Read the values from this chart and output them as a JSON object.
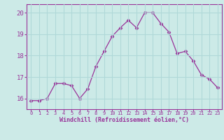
{
  "x": [
    0,
    1,
    2,
    3,
    4,
    5,
    6,
    7,
    8,
    9,
    10,
    11,
    12,
    13,
    14,
    15,
    16,
    17,
    18,
    19,
    20,
    21,
    22,
    23
  ],
  "y": [
    15.9,
    15.9,
    16.0,
    16.7,
    16.7,
    16.6,
    16.0,
    16.45,
    17.5,
    18.2,
    18.9,
    19.3,
    19.65,
    19.3,
    20.0,
    20.0,
    19.5,
    19.1,
    18.1,
    18.2,
    17.75,
    17.1,
    16.9,
    16.5
  ],
  "line_color": "#993399",
  "marker": "D",
  "marker_size": 2.5,
  "bg_color": "#cceae7",
  "grid_color": "#b0d8d8",
  "xlabel": "Windchill (Refroidissement éolien,°C)",
  "xlabel_color": "#993399",
  "tick_color": "#993399",
  "label_color": "#993399",
  "ylim": [
    15.5,
    20.4
  ],
  "xlim": [
    -0.5,
    23.5
  ],
  "yticks": [
    16,
    17,
    18,
    19,
    20
  ],
  "xticks": [
    0,
    1,
    2,
    3,
    4,
    5,
    6,
    7,
    8,
    9,
    10,
    11,
    12,
    13,
    14,
    15,
    16,
    17,
    18,
    19,
    20,
    21,
    22,
    23
  ],
  "xtick_labels": [
    "0",
    "1",
    "2",
    "3",
    "4",
    "5",
    "6",
    "7",
    "8",
    "9",
    "10",
    "11",
    "12",
    "13",
    "14",
    "15",
    "16",
    "17",
    "18",
    "19",
    "20",
    "21",
    "22",
    "23"
  ],
  "spine_color": "#993399",
  "linewidth": 0.9
}
